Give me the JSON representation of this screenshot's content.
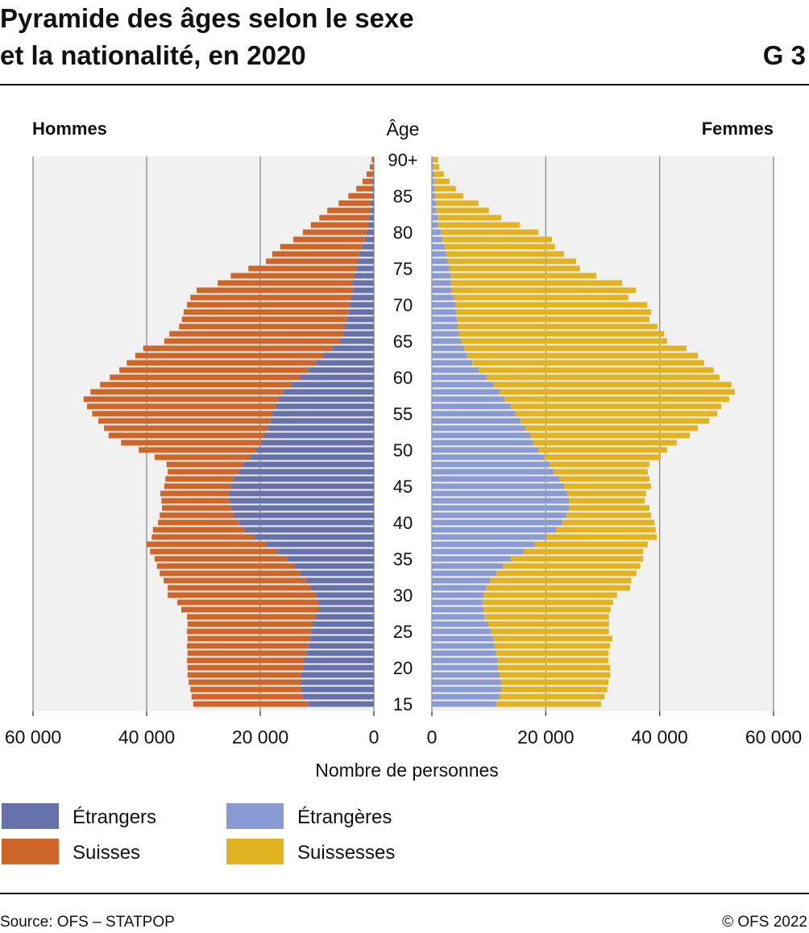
{
  "chart_data": {
    "type": "pyramid",
    "title": [
      "Pyramide des âges selon le sexe",
      "et la nationalité, en 2020"
    ],
    "chart_number": "G 3",
    "left_title": "Hommes",
    "right_title": "Femmes",
    "y_label": "Âge",
    "x_label": "Nombre de personnes",
    "source": "Source: OFS – STATPOP",
    "copyright": "© OFS 2022",
    "categories": [
      "15",
      null,
      null,
      null,
      null,
      "20",
      null,
      null,
      null,
      null,
      "25",
      null,
      null,
      null,
      null,
      "30",
      null,
      null,
      null,
      null,
      "35",
      null,
      null,
      null,
      null,
      "40",
      null,
      null,
      null,
      null,
      "45",
      null,
      null,
      null,
      null,
      "50",
      null,
      null,
      null,
      null,
      "55",
      null,
      null,
      null,
      null,
      "60",
      null,
      null,
      null,
      null,
      "65",
      null,
      null,
      null,
      null,
      "70",
      null,
      null,
      null,
      null,
      "75",
      null,
      null,
      null,
      null,
      "80",
      null,
      null,
      null,
      null,
      "85",
      null,
      null,
      null,
      null,
      "90+"
    ],
    "xlim": [
      0,
      60000
    ],
    "xticks": [
      0,
      {
        "value": 20000,
        "label": "20 000"
      },
      {
        "value": 40000,
        "label": "40 000"
      },
      {
        "value": 60000,
        "label": "60 000"
      }
    ],
    "grid": true,
    "series": [
      {
        "name": "Étrangers",
        "side": "left",
        "color": "#6672a9",
        "values": [
          11600,
          12500,
          12800,
          12900,
          12800,
          12500,
          12200,
          11900,
          11600,
          11300,
          11100,
          10800,
          10200,
          9800,
          9800,
          10200,
          11100,
          11900,
          13000,
          13900,
          15300,
          17000,
          19000,
          21000,
          22700,
          23800,
          24700,
          25100,
          25500,
          25500,
          25200,
          24700,
          23800,
          23000,
          21800,
          20700,
          19900,
          19300,
          18700,
          18200,
          17900,
          17300,
          16900,
          15900,
          14500,
          13000,
          11600,
          10200,
          8800,
          7400,
          6000,
          5400,
          5100,
          4800,
          4500,
          4300,
          4000,
          3800,
          3700,
          3400,
          3100,
          2800,
          2600,
          2000,
          1600,
          1300,
          1000,
          900,
          700,
          600,
          400,
          300,
          300,
          200,
          100,
          100
        ]
      },
      {
        "name": "Suisses",
        "side": "left",
        "color": "#cf6629",
        "values": [
          20200,
          19600,
          19500,
          19700,
          20000,
          20300,
          20700,
          20900,
          21300,
          21500,
          21800,
          22000,
          22700,
          24100,
          24800,
          26100,
          25200,
          25100,
          24700,
          24300,
          23300,
          22400,
          21000,
          18100,
          16200,
          14200,
          13000,
          12200,
          11900,
          12100,
          11700,
          12000,
          12500,
          13500,
          16800,
          20700,
          24600,
          27400,
          28800,
          30300,
          31700,
          33200,
          34200,
          34000,
          33700,
          33500,
          33200,
          33300,
          33200,
          33200,
          30900,
          30600,
          29200,
          29000,
          29000,
          28600,
          28300,
          27400,
          23800,
          21800,
          19000,
          16200,
          15300,
          14500,
          12600,
          11200,
          10100,
          8700,
          7500,
          5600,
          4100,
          2800,
          1700,
          1100,
          600,
          300
        ]
      },
      {
        "name": "Étrangères",
        "side": "right",
        "color": "#8a9bd3",
        "values": [
          11300,
          11900,
          12200,
          12100,
          11900,
          11600,
          11500,
          11300,
          11000,
          10800,
          10300,
          9900,
          9300,
          9100,
          8900,
          9100,
          9500,
          10200,
          11300,
          12500,
          13900,
          16100,
          18100,
          20100,
          21800,
          22900,
          23600,
          24100,
          24100,
          23800,
          23200,
          22400,
          21500,
          20700,
          19800,
          18700,
          17800,
          17300,
          16400,
          15600,
          14700,
          13900,
          12700,
          11900,
          10800,
          9600,
          8200,
          7100,
          6200,
          5700,
          5100,
          4800,
          4500,
          4400,
          4200,
          4100,
          3800,
          3400,
          3300,
          3300,
          3100,
          2800,
          2500,
          2300,
          1800,
          1600,
          1100,
          1000,
          800,
          700,
          600,
          500,
          400,
          300,
          200,
          200
        ]
      },
      {
        "name": "Suissesses",
        "side": "right",
        "color": "#e2b220",
        "values": [
          18400,
          18400,
          18600,
          18900,
          19400,
          19700,
          19500,
          19700,
          20300,
          20900,
          20800,
          21200,
          21800,
          22300,
          22900,
          23400,
          25300,
          24800,
          24600,
          24100,
          23200,
          21000,
          19800,
          19400,
          17500,
          16200,
          14900,
          14100,
          13300,
          13800,
          15300,
          15800,
          16400,
          17500,
          20400,
          22600,
          25200,
          28000,
          30300,
          33100,
          35400,
          36900,
          39500,
          41300,
          41800,
          40900,
          41300,
          40700,
          40500,
          39000,
          36200,
          36000,
          35100,
          33800,
          34300,
          33700,
          30700,
          32400,
          30100,
          25600,
          22900,
          22500,
          20700,
          19300,
          19300,
          17100,
          14300,
          11200,
          9200,
          7500,
          4900,
          3700,
          2700,
          1800,
          1100,
          900
        ]
      }
    ]
  }
}
